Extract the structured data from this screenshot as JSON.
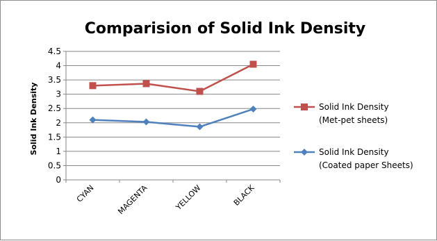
{
  "chart_data": {
    "type": "line",
    "title": "Comparision of Solid Ink Density",
    "xlabel": "",
    "ylabel": "Solid Ink Density",
    "categories": [
      "CYAN",
      "MAGENTA",
      "YELLOW",
      "BLACK"
    ],
    "ylim": [
      0,
      4.5
    ],
    "yticks": [
      "0",
      "0.5",
      "1",
      "1.5",
      "2",
      "2.5",
      "3",
      "3.5",
      "4",
      "4.5"
    ],
    "grid": true,
    "legend_position": "right",
    "series": [
      {
        "name_line1": "Solid Ink Density",
        "name_line2": "(Met-pet sheets)",
        "values": [
          3.3,
          3.37,
          3.1,
          4.05
        ],
        "color": "#c0504d",
        "marker": "square"
      },
      {
        "name_line1": "Solid Ink Density",
        "name_line2": "(Coated paper Sheets)",
        "values": [
          2.1,
          2.03,
          1.86,
          2.48
        ],
        "color": "#4f81bd",
        "marker": "diamond"
      }
    ]
  }
}
